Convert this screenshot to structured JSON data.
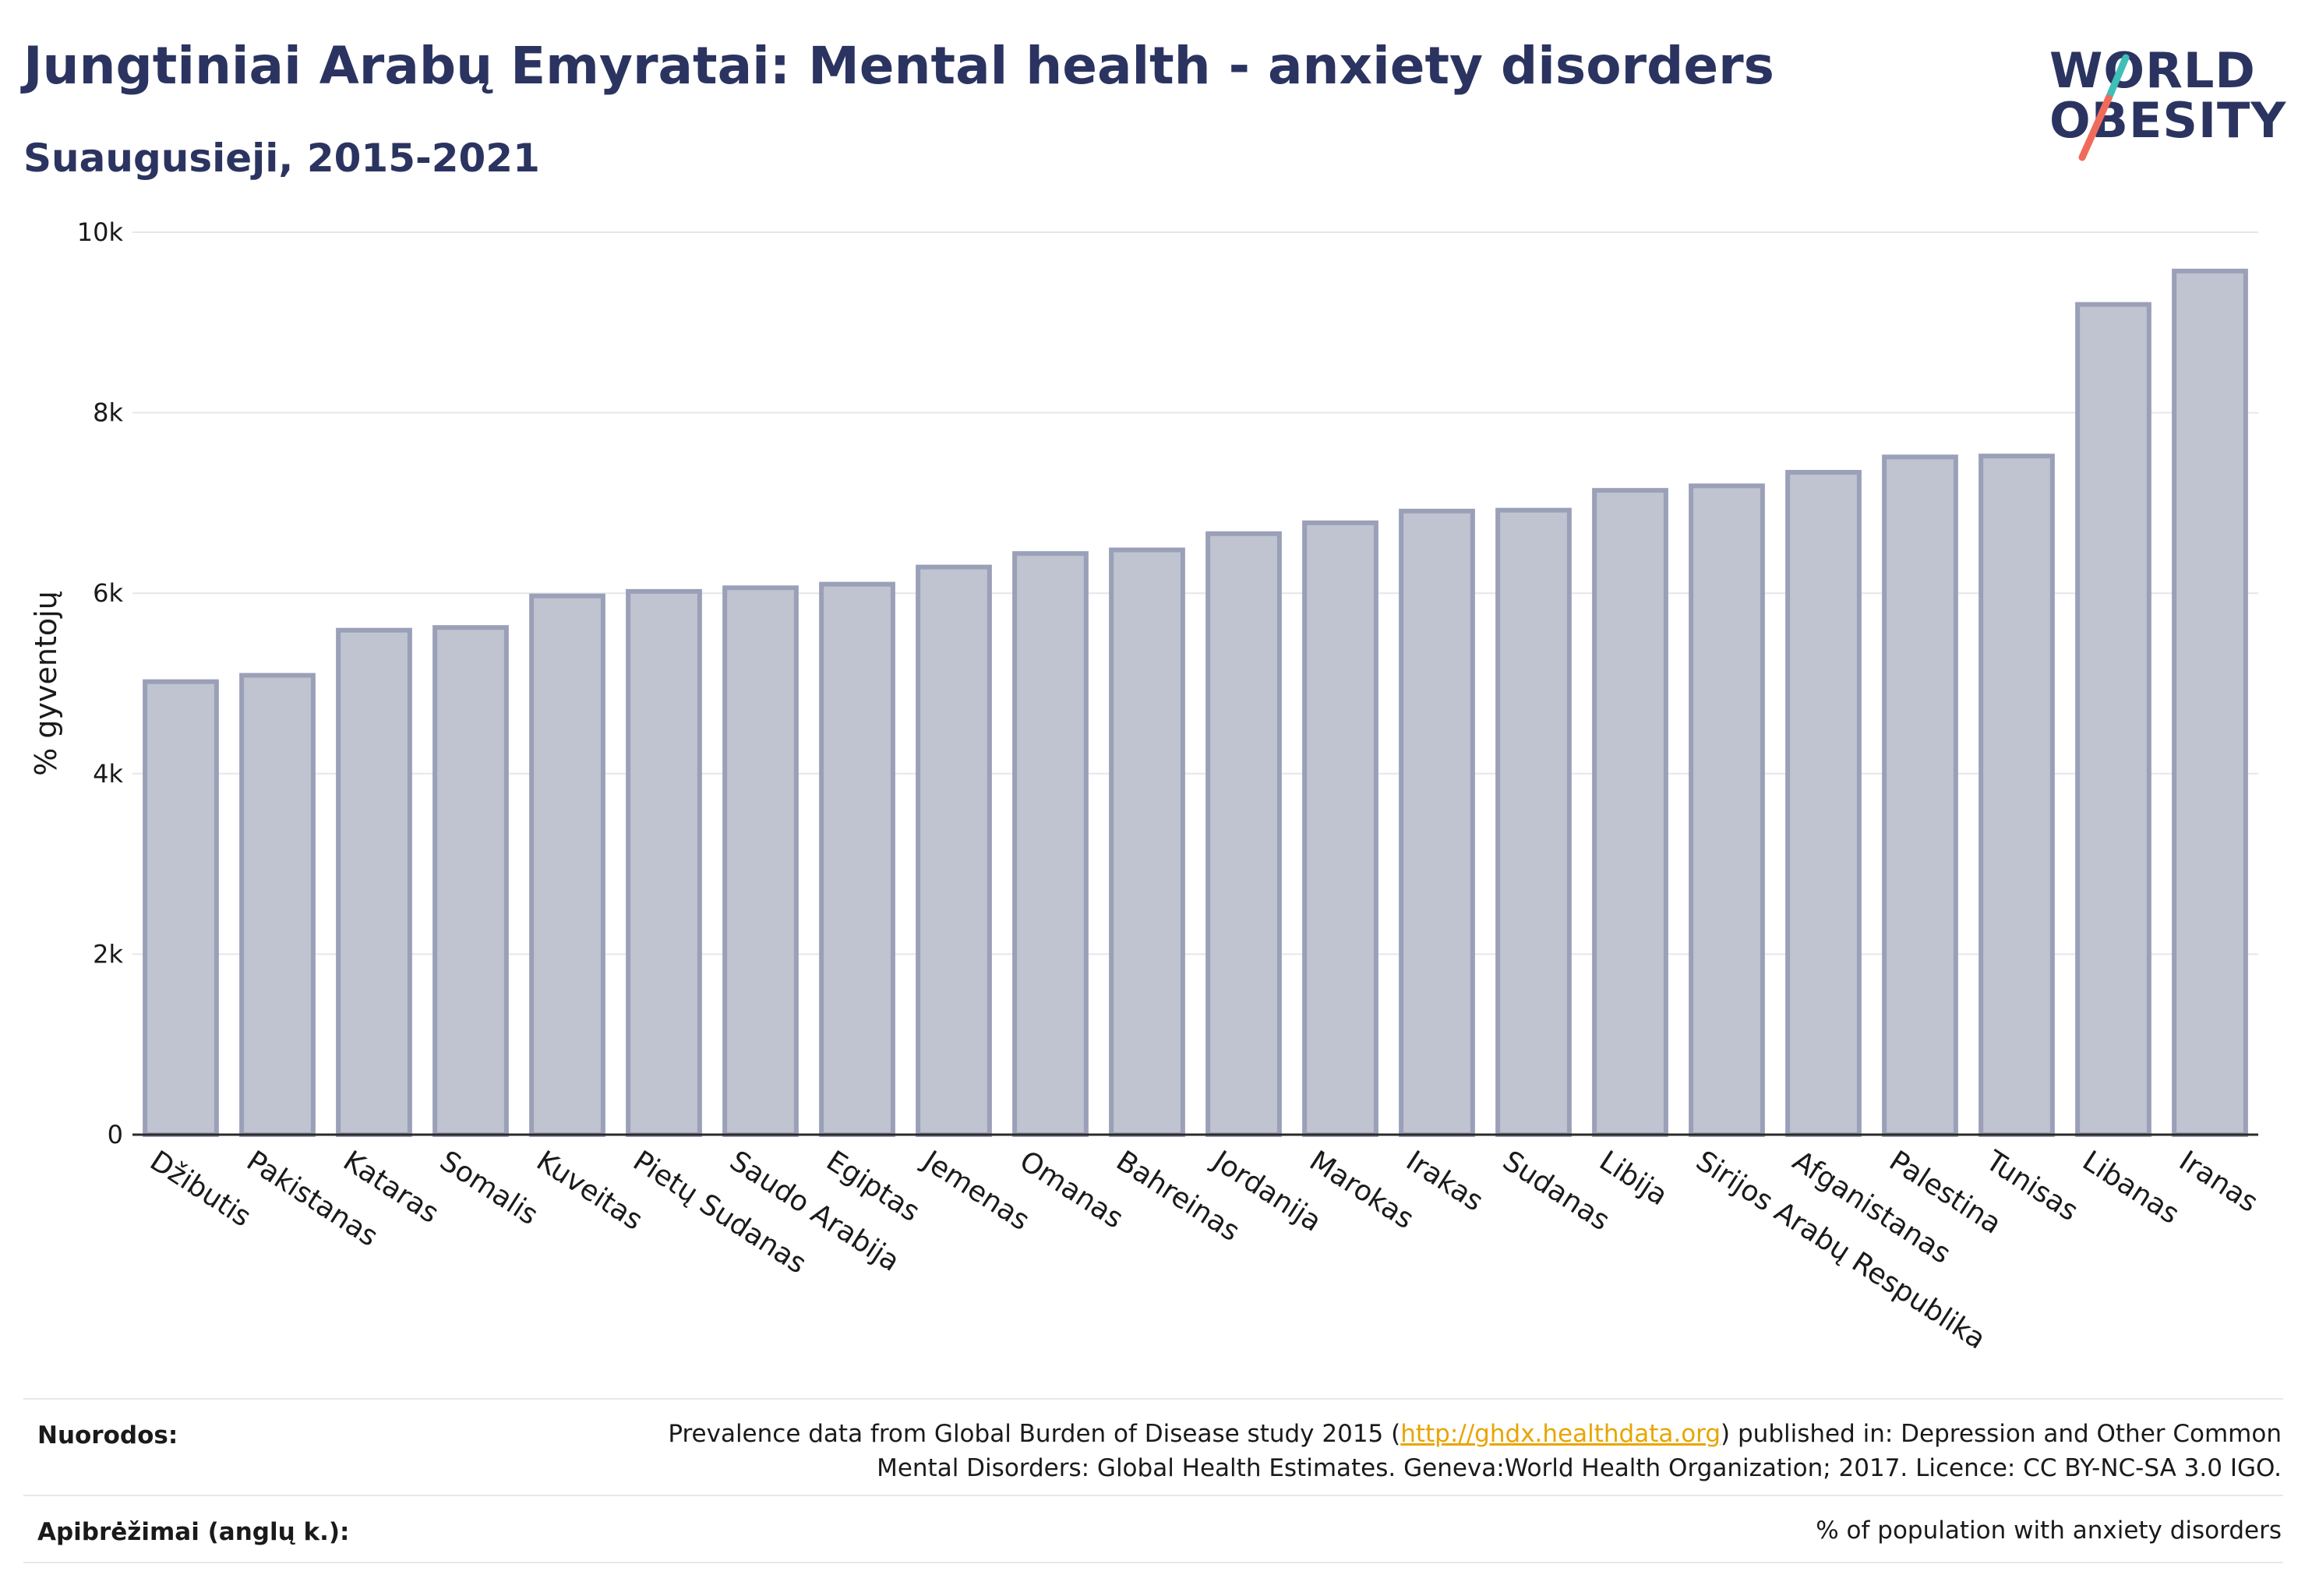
{
  "title": "Jungtiniai Arabų Emyratai: Mental health - anxiety disorders",
  "subtitle": "Suaugusieji, 2015-2021",
  "logo": {
    "line1": "WORLD",
    "line2": "OBESITY"
  },
  "colors": {
    "bar_fill": "#c0c3d0",
    "bar_stroke": "#9aa0b7",
    "title": "#2b3460",
    "link": "#e8a500",
    "logo_teal": "#3fbfb8",
    "logo_coral": "#f06b5a"
  },
  "chart_data": {
    "type": "bar",
    "ylabel": "% gyventojų",
    "ylim": [
      0,
      10000
    ],
    "yticks": [
      0,
      2000,
      4000,
      6000,
      8000,
      10000
    ],
    "ytick_labels": [
      "0",
      "2k",
      "4k",
      "6k",
      "8k",
      "10k"
    ],
    "grid": true,
    "categories": [
      "Džibutis",
      "Pakistanas",
      "Kataras",
      "Somalis",
      "Kuveitas",
      "Pietų Sudanas",
      "Saudo Arabija",
      "Egiptas",
      "Jemenas",
      "Omanas",
      "Bahreinas",
      "Jordanija",
      "Marokas",
      "Irakas",
      "Sudanas",
      "Libija",
      "Sirijos Arabų Respublika",
      "Afganistanas",
      "Palestina",
      "Tunisas",
      "Libanas",
      "Iranas"
    ],
    "values": [
      5020,
      5090,
      5590,
      5620,
      5970,
      6020,
      6060,
      6100,
      6290,
      6440,
      6480,
      6660,
      6780,
      6910,
      6920,
      7140,
      7190,
      7340,
      7510,
      7520,
      9200,
      9570
    ]
  },
  "footer": {
    "sources_label": "Nuorodos:",
    "sources_pre": "Prevalence data from Global Burden of Disease study 2015 (",
    "sources_link": "http://ghdx.healthdata.org",
    "sources_post": ") published in: Depression and Other Common",
    "sources_line2": "Mental Disorders: Global Health Estimates. Geneva:World Health Organization; 2017. Licence: CC BY-NC-SA 3.0 IGO.",
    "definitions_label": "Apibrėžimai (anglų k.):",
    "definitions_text": "% of population with anxiety disorders"
  }
}
